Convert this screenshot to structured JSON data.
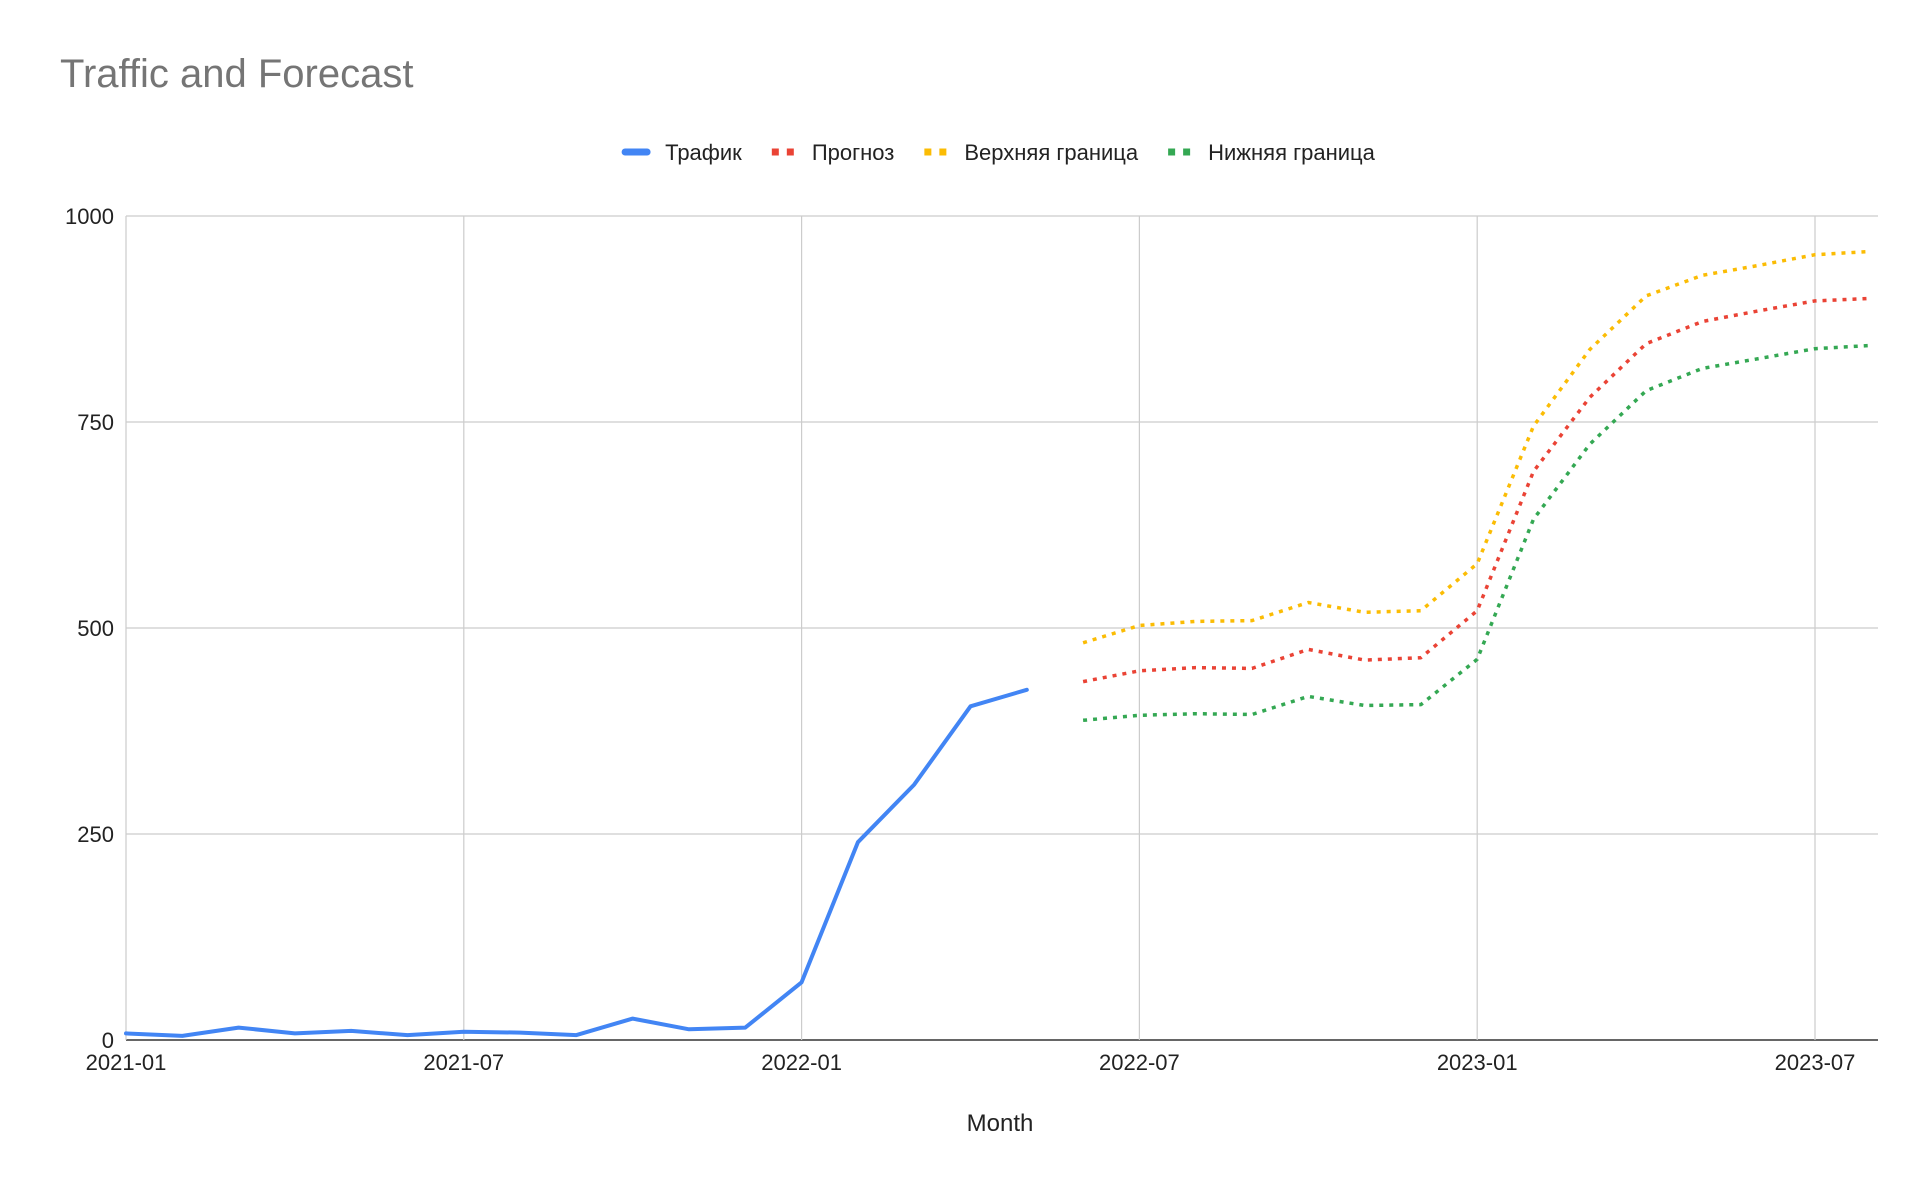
{
  "chart_data": {
    "type": "line",
    "title": "Traffic and Forecast",
    "xlabel": "Month",
    "ylabel": "",
    "ylim": [
      0,
      1000
    ],
    "yticks": [
      0,
      250,
      500,
      750,
      1000
    ],
    "xticks": [
      "2021-01",
      "2021-07",
      "2022-01",
      "2022-07",
      "2023-01",
      "2023-07"
    ],
    "grid": true,
    "legend_position": "top",
    "series": [
      {
        "name": "Трафик",
        "color": "#4285F4",
        "style": "solid",
        "x": [
          "2021-01",
          "2021-02",
          "2021-03",
          "2021-04",
          "2021-05",
          "2021-06",
          "2021-07",
          "2021-08",
          "2021-09",
          "2021-10",
          "2021-11",
          "2021-12",
          "2022-01",
          "2022-02",
          "2022-03",
          "2022-04",
          "2022-05"
        ],
        "values": [
          8,
          5,
          15,
          8,
          11,
          6,
          10,
          9,
          6,
          26,
          13,
          15,
          70,
          240,
          310,
          405,
          425
        ]
      },
      {
        "name": "Прогноз",
        "color": "#EA4335",
        "style": "dotted",
        "x": [
          "2022-06",
          "2022-07",
          "2022-08",
          "2022-09",
          "2022-10",
          "2022-11",
          "2022-12",
          "2023-01",
          "2023-02",
          "2023-03",
          "2023-04",
          "2023-05",
          "2023-06",
          "2023-07",
          "2023-08"
        ],
        "values": [
          435,
          448,
          452,
          451,
          474,
          461,
          464,
          521,
          690,
          780,
          845,
          872,
          885,
          897,
          900
        ]
      },
      {
        "name": "Верхняя граница",
        "color": "#FBBC04",
        "style": "dotted",
        "x": [
          "2022-06",
          "2022-07",
          "2022-08",
          "2022-09",
          "2022-10",
          "2022-11",
          "2022-12",
          "2023-01",
          "2023-02",
          "2023-03",
          "2023-04",
          "2023-05",
          "2023-06",
          "2023-07",
          "2023-08"
        ],
        "values": [
          482,
          503,
          508,
          509,
          531,
          519,
          521,
          578,
          745,
          838,
          903,
          928,
          940,
          953,
          957
        ]
      },
      {
        "name": "Нижняя граница",
        "color": "#34A853",
        "style": "dotted",
        "x": [
          "2022-06",
          "2022-07",
          "2022-08",
          "2022-09",
          "2022-10",
          "2022-11",
          "2022-12",
          "2023-01",
          "2023-02",
          "2023-03",
          "2023-04",
          "2023-05",
          "2023-06",
          "2023-07",
          "2023-08"
        ],
        "values": [
          388,
          394,
          396,
          395,
          417,
          406,
          407,
          462,
          632,
          723,
          788,
          815,
          827,
          839,
          843
        ]
      }
    ]
  }
}
